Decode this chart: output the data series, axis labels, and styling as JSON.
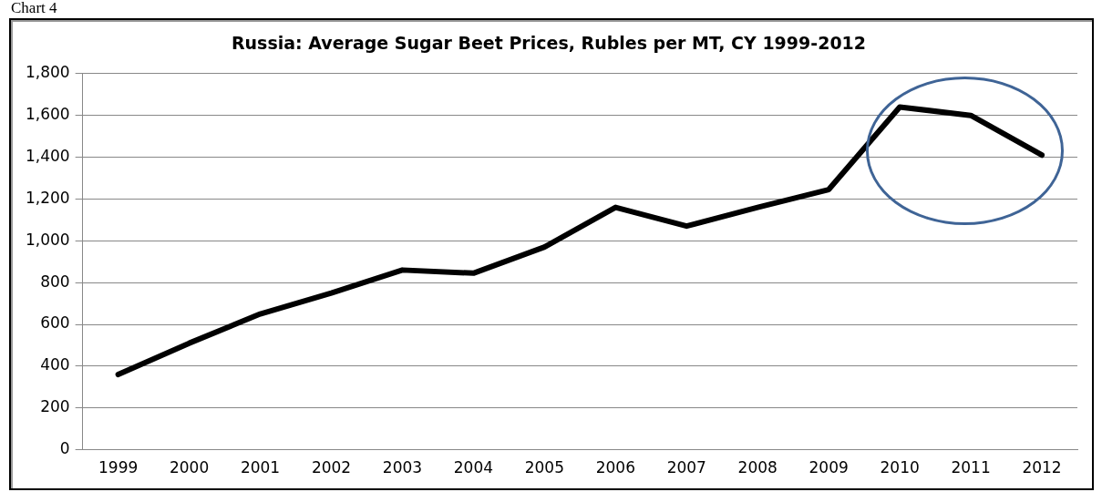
{
  "chart_data": {
    "type": "line",
    "title": "Russia: Average Sugar Beet Prices, Rubles per MT, CY 1999-2012",
    "annotations": [
      "Chart 4"
    ],
    "categories": [
      "1999",
      "2000",
      "2001",
      "2002",
      "2003",
      "2004",
      "2005",
      "2006",
      "2007",
      "2008",
      "2009",
      "2010",
      "2011",
      "2012"
    ],
    "series": [
      {
        "color": "#000000",
        "values": [
          360,
          510,
          650,
          750,
          860,
          845,
          970,
          1160,
          1070,
          1160,
          1245,
          1640,
          1600,
          1410
        ]
      }
    ],
    "ylim": [
      0,
      1800
    ],
    "yticks": [
      0,
      200,
      400,
      600,
      800,
      {
        "value": 1000,
        "label": "1,000"
      },
      {
        "value": 1200,
        "label": "1,200"
      },
      {
        "value": 1400,
        "label": "1,400"
      },
      {
        "value": 1600,
        "label": "1,600"
      },
      {
        "value": 1800,
        "label": "1,800"
      }
    ],
    "grid": "y",
    "legend": false,
    "marker": "none",
    "line_style": "solid"
  }
}
